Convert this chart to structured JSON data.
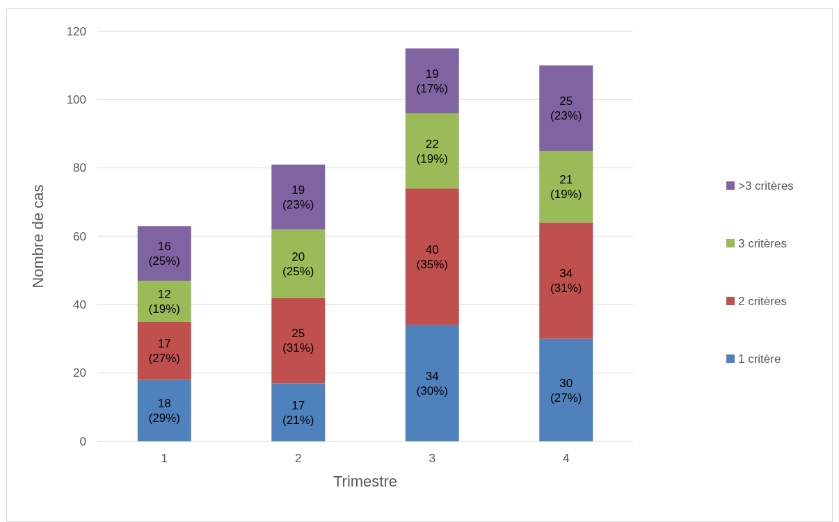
{
  "chart_data": {
    "type": "bar",
    "stacked": true,
    "xlabel": "Trimestre",
    "ylabel": "Nombre de cas",
    "categories": [
      "1",
      "2",
      "3",
      "4"
    ],
    "ylim": [
      0,
      120
    ],
    "yticks": [
      0,
      20,
      40,
      60,
      80,
      100,
      120
    ],
    "grid": "y",
    "legend": "right",
    "series": [
      {
        "name": "1 critère",
        "color": "#4f81bd",
        "values": [
          18,
          17,
          34,
          30
        ],
        "value_labels": [
          "18\n(29%)",
          "17\n(21%)",
          "34\n(30%)",
          "30\n(27%)"
        ]
      },
      {
        "name": "2 critères",
        "color": "#c0504d",
        "values": [
          17,
          25,
          40,
          34
        ],
        "value_labels": [
          "17\n(27%)",
          "25\n(31%)",
          "40\n(35%)",
          "34\n(31%)"
        ]
      },
      {
        "name": "3 critères",
        "color": "#9bbb59",
        "values": [
          12,
          20,
          22,
          21
        ],
        "value_labels": [
          "12\n(19%)",
          "20\n(25%)",
          "22\n(19%)",
          "21\n(19%)"
        ]
      },
      {
        "name": ">3 critères",
        "color": "#8064a2",
        "values": [
          16,
          19,
          19,
          25
        ],
        "value_labels": [
          "16\n(25%)",
          "19\n(23%)",
          "19\n(17%)",
          "25\n(23%)"
        ]
      }
    ]
  }
}
